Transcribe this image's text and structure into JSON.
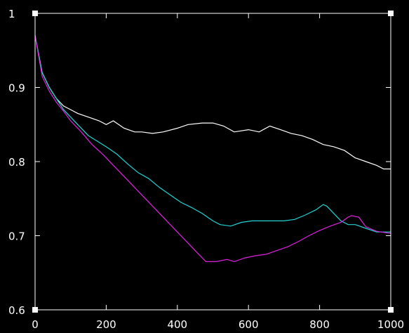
{
  "chart_data": {
    "type": "line",
    "title": "",
    "xlabel": "",
    "ylabel": "",
    "xlim": [
      0,
      1000
    ],
    "ylim": [
      0.6,
      1.0
    ],
    "grid": false,
    "x_ticks": [
      0,
      200,
      400,
      600,
      800,
      1000
    ],
    "x_tick_labels": [
      "0",
      "200",
      "400",
      "600",
      "800",
      "1000"
    ],
    "y_ticks": [
      0.6,
      0.7,
      0.8,
      0.9,
      1.0
    ],
    "y_tick_labels": [
      "0.6",
      "0.7",
      "0.8",
      "0.9",
      "1"
    ],
    "background": "#000000",
    "axis_color": "#ffffff",
    "series": [
      {
        "color": "#ffffff",
        "x": [
          0,
          20,
          40,
          60,
          80,
          100,
          120,
          150,
          180,
          200,
          220,
          250,
          280,
          300,
          330,
          360,
          400,
          430,
          470,
          500,
          530,
          560,
          600,
          630,
          660,
          690,
          720,
          750,
          780,
          810,
          840,
          870,
          900,
          930,
          960,
          980,
          1000
        ],
        "y": [
          0.97,
          0.92,
          0.9,
          0.885,
          0.875,
          0.87,
          0.865,
          0.86,
          0.855,
          0.85,
          0.855,
          0.845,
          0.84,
          0.84,
          0.838,
          0.84,
          0.845,
          0.85,
          0.852,
          0.852,
          0.848,
          0.84,
          0.843,
          0.84,
          0.848,
          0.843,
          0.838,
          0.835,
          0.83,
          0.823,
          0.82,
          0.815,
          0.805,
          0.8,
          0.795,
          0.79,
          0.79
        ]
      },
      {
        "color": "#22d3d3",
        "x": [
          0,
          20,
          40,
          60,
          80,
          100,
          120,
          150,
          180,
          200,
          230,
          260,
          290,
          320,
          350,
          380,
          410,
          440,
          470,
          500,
          520,
          550,
          580,
          610,
          640,
          670,
          700,
          730,
          760,
          790,
          810,
          820,
          840,
          860,
          880,
          900,
          930,
          960,
          1000
        ],
        "y": [
          0.97,
          0.92,
          0.9,
          0.885,
          0.87,
          0.86,
          0.85,
          0.835,
          0.826,
          0.82,
          0.81,
          0.797,
          0.785,
          0.777,
          0.765,
          0.755,
          0.745,
          0.738,
          0.73,
          0.72,
          0.715,
          0.713,
          0.718,
          0.72,
          0.72,
          0.72,
          0.72,
          0.722,
          0.728,
          0.735,
          0.742,
          0.74,
          0.73,
          0.72,
          0.715,
          0.715,
          0.71,
          0.705,
          0.705
        ]
      },
      {
        "color": "#e020e0",
        "x": [
          0,
          20,
          40,
          60,
          80,
          100,
          130,
          160,
          190,
          220,
          250,
          280,
          310,
          340,
          370,
          400,
          430,
          460,
          480,
          510,
          540,
          560,
          590,
          620,
          650,
          680,
          710,
          740,
          770,
          800,
          830,
          860,
          880,
          890,
          910,
          930,
          960,
          1000
        ],
        "y": [
          0.97,
          0.915,
          0.895,
          0.88,
          0.868,
          0.855,
          0.84,
          0.823,
          0.81,
          0.795,
          0.78,
          0.765,
          0.75,
          0.735,
          0.72,
          0.705,
          0.69,
          0.675,
          0.665,
          0.665,
          0.668,
          0.665,
          0.67,
          0.673,
          0.675,
          0.68,
          0.685,
          0.692,
          0.7,
          0.707,
          0.713,
          0.718,
          0.725,
          0.727,
          0.725,
          0.712,
          0.706,
          0.703
        ]
      }
    ]
  }
}
